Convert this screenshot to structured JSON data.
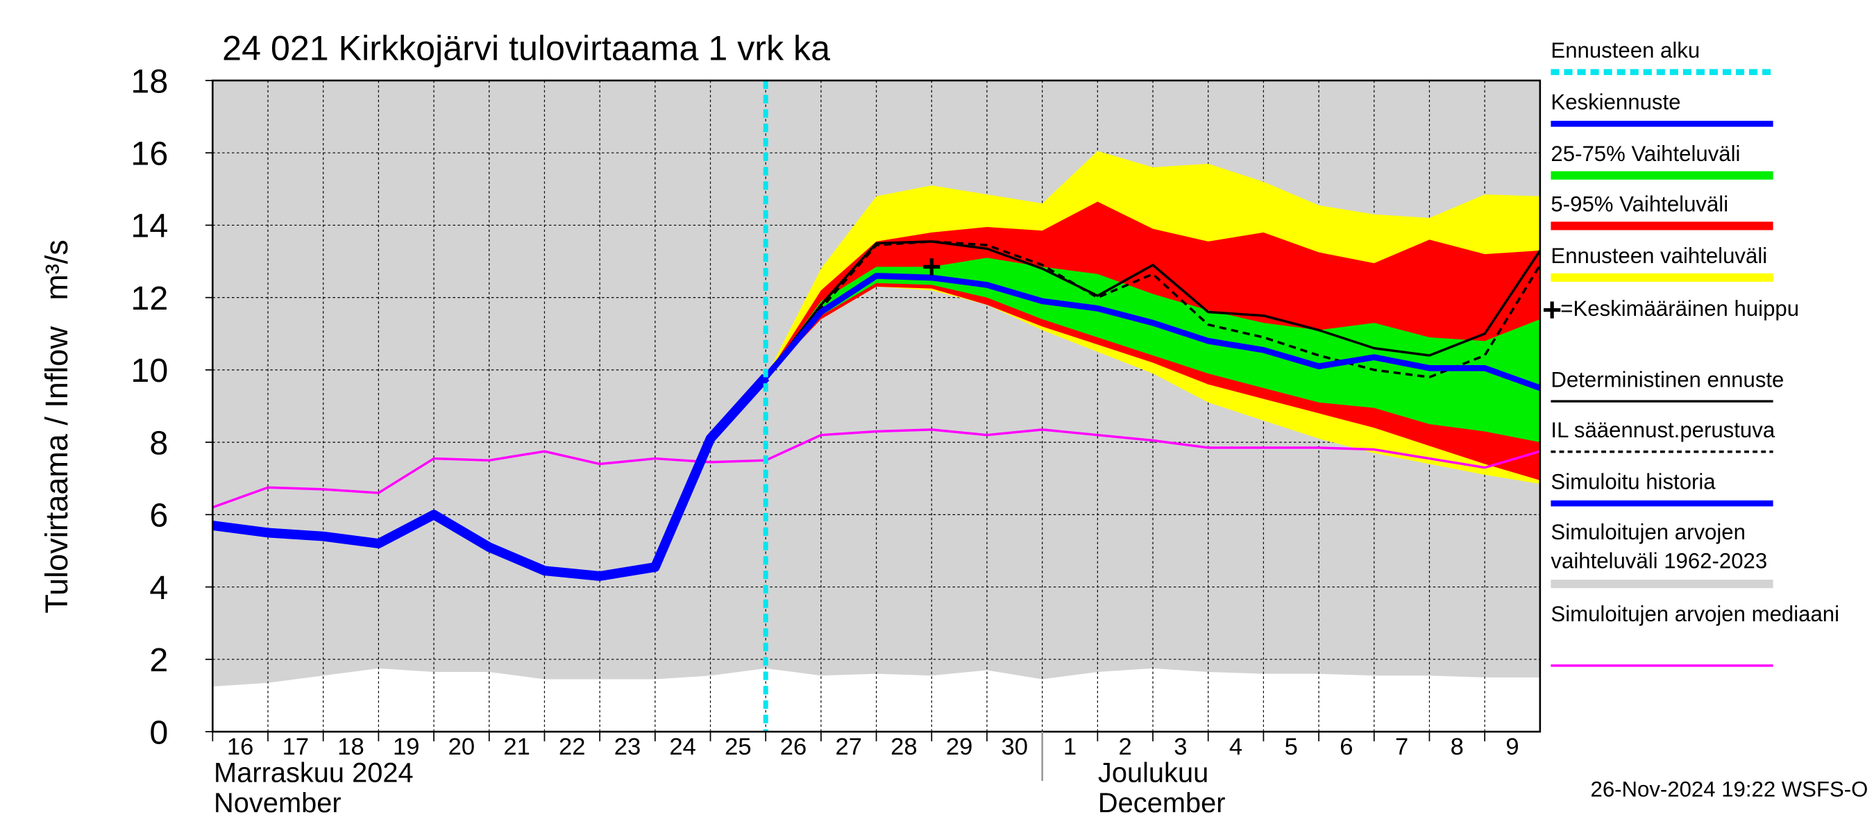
{
  "chart_data": {
    "type": "line",
    "title": "24 021 Kirkkojärvi tulovirtaama 1 vrk ka",
    "y_label": "Tulovirtaama / Inflow   m³/s",
    "month_labels": [
      "Marraskuu 2024",
      "November",
      "Joulukuu",
      "December"
    ],
    "footer": "26-Nov-2024 19:22 WSFS-O",
    "xlim": [
      0,
      24
    ],
    "xticks": [
      {
        "value": 0,
        "label": "16"
      },
      {
        "value": 1,
        "label": "17"
      },
      {
        "value": 2,
        "label": "18"
      },
      {
        "value": 3,
        "label": "19"
      },
      {
        "value": 4,
        "label": "20"
      },
      {
        "value": 5,
        "label": "21"
      },
      {
        "value": 6,
        "label": "22"
      },
      {
        "value": 7,
        "label": "23"
      },
      {
        "value": 8,
        "label": "24"
      },
      {
        "value": 9,
        "label": "25"
      },
      {
        "value": 10,
        "label": "26"
      },
      {
        "value": 11,
        "label": "27"
      },
      {
        "value": 12,
        "label": "28"
      },
      {
        "value": 13,
        "label": "29"
      },
      {
        "value": 14,
        "label": "30"
      },
      {
        "value": 15,
        "label": "1"
      },
      {
        "value": 16,
        "label": "2"
      },
      {
        "value": 17,
        "label": "3"
      },
      {
        "value": 18,
        "label": "4"
      },
      {
        "value": 19,
        "label": "5"
      },
      {
        "value": 20,
        "label": "6"
      },
      {
        "value": 21,
        "label": "7"
      },
      {
        "value": 22,
        "label": "8"
      },
      {
        "value": 23,
        "label": "9"
      }
    ],
    "ylim": [
      0,
      18
    ],
    "yticks": [
      0,
      2,
      4,
      6,
      8,
      10,
      12,
      14,
      16,
      18
    ],
    "grid": true,
    "x": [
      0,
      1,
      2,
      3,
      4,
      5,
      6,
      7,
      8,
      9,
      10,
      11,
      12,
      13,
      14,
      15,
      16,
      17,
      18,
      19,
      20,
      21,
      22,
      23,
      24
    ],
    "series": [
      {
        "name": "Ennusteen alku",
        "color": "#00e5ee",
        "kind": "vline",
        "x": 10
      },
      {
        "name": "Keskiennuste",
        "color": "#0000ff",
        "kind": "line",
        "width": 5,
        "values": [
          null,
          null,
          null,
          null,
          null,
          null,
          null,
          null,
          null,
          null,
          9.8,
          11.6,
          12.6,
          12.55,
          12.35,
          11.9,
          11.7,
          11.3,
          10.8,
          10.55,
          10.1,
          10.35,
          10.05,
          10.05,
          9.5
        ]
      },
      {
        "name": "25-75% Vaihteluväli",
        "color": "#00ee00",
        "kind": "band",
        "high": [
          null,
          null,
          null,
          null,
          null,
          null,
          null,
          null,
          null,
          null,
          9.8,
          11.9,
          12.85,
          12.85,
          13.1,
          12.85,
          12.65,
          12.1,
          11.65,
          11.3,
          11.1,
          11.3,
          10.9,
          10.8,
          11.4
        ],
        "low": [
          null,
          null,
          null,
          null,
          null,
          null,
          null,
          null,
          null,
          null,
          9.8,
          11.5,
          12.4,
          12.35,
          12.0,
          11.4,
          10.9,
          10.4,
          9.9,
          9.5,
          9.1,
          8.95,
          8.5,
          8.3,
          8.0
        ]
      },
      {
        "name": "5-95% Vaihteluväli",
        "color": "#ff0000",
        "kind": "band",
        "high": [
          null,
          null,
          null,
          null,
          null,
          null,
          null,
          null,
          null,
          null,
          9.8,
          12.2,
          13.55,
          13.8,
          13.95,
          13.85,
          14.65,
          13.9,
          13.55,
          13.8,
          13.25,
          12.95,
          13.6,
          13.2,
          13.3
        ],
        "low": [
          null,
          null,
          null,
          null,
          null,
          null,
          null,
          null,
          null,
          null,
          9.8,
          11.4,
          12.3,
          12.25,
          11.8,
          11.2,
          10.7,
          10.2,
          9.6,
          9.2,
          8.8,
          8.4,
          7.9,
          7.4,
          6.95
        ]
      },
      {
        "name": "Ennusteen vaihteluväli",
        "color": "#ffff00",
        "kind": "band",
        "high": [
          null,
          null,
          null,
          null,
          null,
          null,
          null,
          null,
          null,
          null,
          9.8,
          12.8,
          14.8,
          15.1,
          14.85,
          14.6,
          16.05,
          15.6,
          15.7,
          15.2,
          14.55,
          14.3,
          14.2,
          14.85,
          14.8
        ],
        "low": [
          null,
          null,
          null,
          null,
          null,
          null,
          null,
          null,
          null,
          null,
          9.8,
          11.4,
          12.3,
          12.2,
          11.8,
          11.1,
          10.5,
          9.9,
          9.1,
          8.6,
          8.1,
          7.7,
          7.4,
          7.1,
          6.85
        ]
      },
      {
        "name": "=Keskimääräinen huippu",
        "color": "#000000",
        "kind": "marker",
        "x": 13,
        "y": 12.85
      },
      {
        "name": "Deterministinen ennuste",
        "color": "#000000",
        "kind": "line",
        "width": 2,
        "values": [
          null,
          null,
          null,
          null,
          null,
          null,
          null,
          null,
          null,
          null,
          9.8,
          11.8,
          13.5,
          13.55,
          13.35,
          12.8,
          12.05,
          12.9,
          11.6,
          11.5,
          11.1,
          10.6,
          10.4,
          11.0,
          13.3
        ]
      },
      {
        "name": "IL sääennust.perustuva",
        "color": "#000000",
        "kind": "line",
        "width": 2,
        "dashed": true,
        "values": [
          null,
          null,
          null,
          null,
          null,
          null,
          null,
          null,
          null,
          null,
          9.8,
          11.7,
          13.45,
          13.55,
          13.45,
          12.9,
          12.0,
          12.65,
          11.25,
          10.9,
          10.4,
          10.0,
          9.8,
          10.4,
          12.9
        ]
      },
      {
        "name": "Simuloitu historia",
        "color": "#0000ff",
        "kind": "line",
        "width": 8,
        "values": [
          5.7,
          5.5,
          5.4,
          5.2,
          6.0,
          5.1,
          4.45,
          4.3,
          4.55,
          8.1,
          9.8,
          null,
          null,
          null,
          null,
          null,
          null,
          null,
          null,
          null,
          null,
          null,
          null,
          null,
          null
        ]
      },
      {
        "name": "Simuloitujen arvojen vaihteluväli 1962-2023",
        "color": "#d3d3d3",
        "kind": "band",
        "high": [
          18,
          18,
          18,
          18,
          18,
          18,
          18,
          18,
          18,
          18,
          18,
          18,
          18,
          18,
          18,
          18,
          18,
          18,
          18,
          18,
          18,
          18,
          18,
          18,
          18
        ],
        "low": [
          1.25,
          1.35,
          1.55,
          1.75,
          1.65,
          1.65,
          1.45,
          1.45,
          1.45,
          1.55,
          1.75,
          1.55,
          1.6,
          1.55,
          1.7,
          1.45,
          1.65,
          1.75,
          1.65,
          1.6,
          1.6,
          1.55,
          1.55,
          1.5,
          1.5
        ]
      },
      {
        "name": "Simuloitujen arvojen mediaani",
        "color": "#ff00ff",
        "kind": "line",
        "width": 2,
        "values": [
          6.2,
          6.75,
          6.7,
          6.6,
          7.55,
          7.5,
          7.75,
          7.4,
          7.55,
          7.45,
          7.5,
          8.2,
          8.3,
          8.35,
          8.2,
          8.35,
          8.2,
          8.05,
          7.85,
          7.85,
          7.85,
          7.8,
          7.55,
          7.3,
          7.75
        ]
      }
    ]
  }
}
